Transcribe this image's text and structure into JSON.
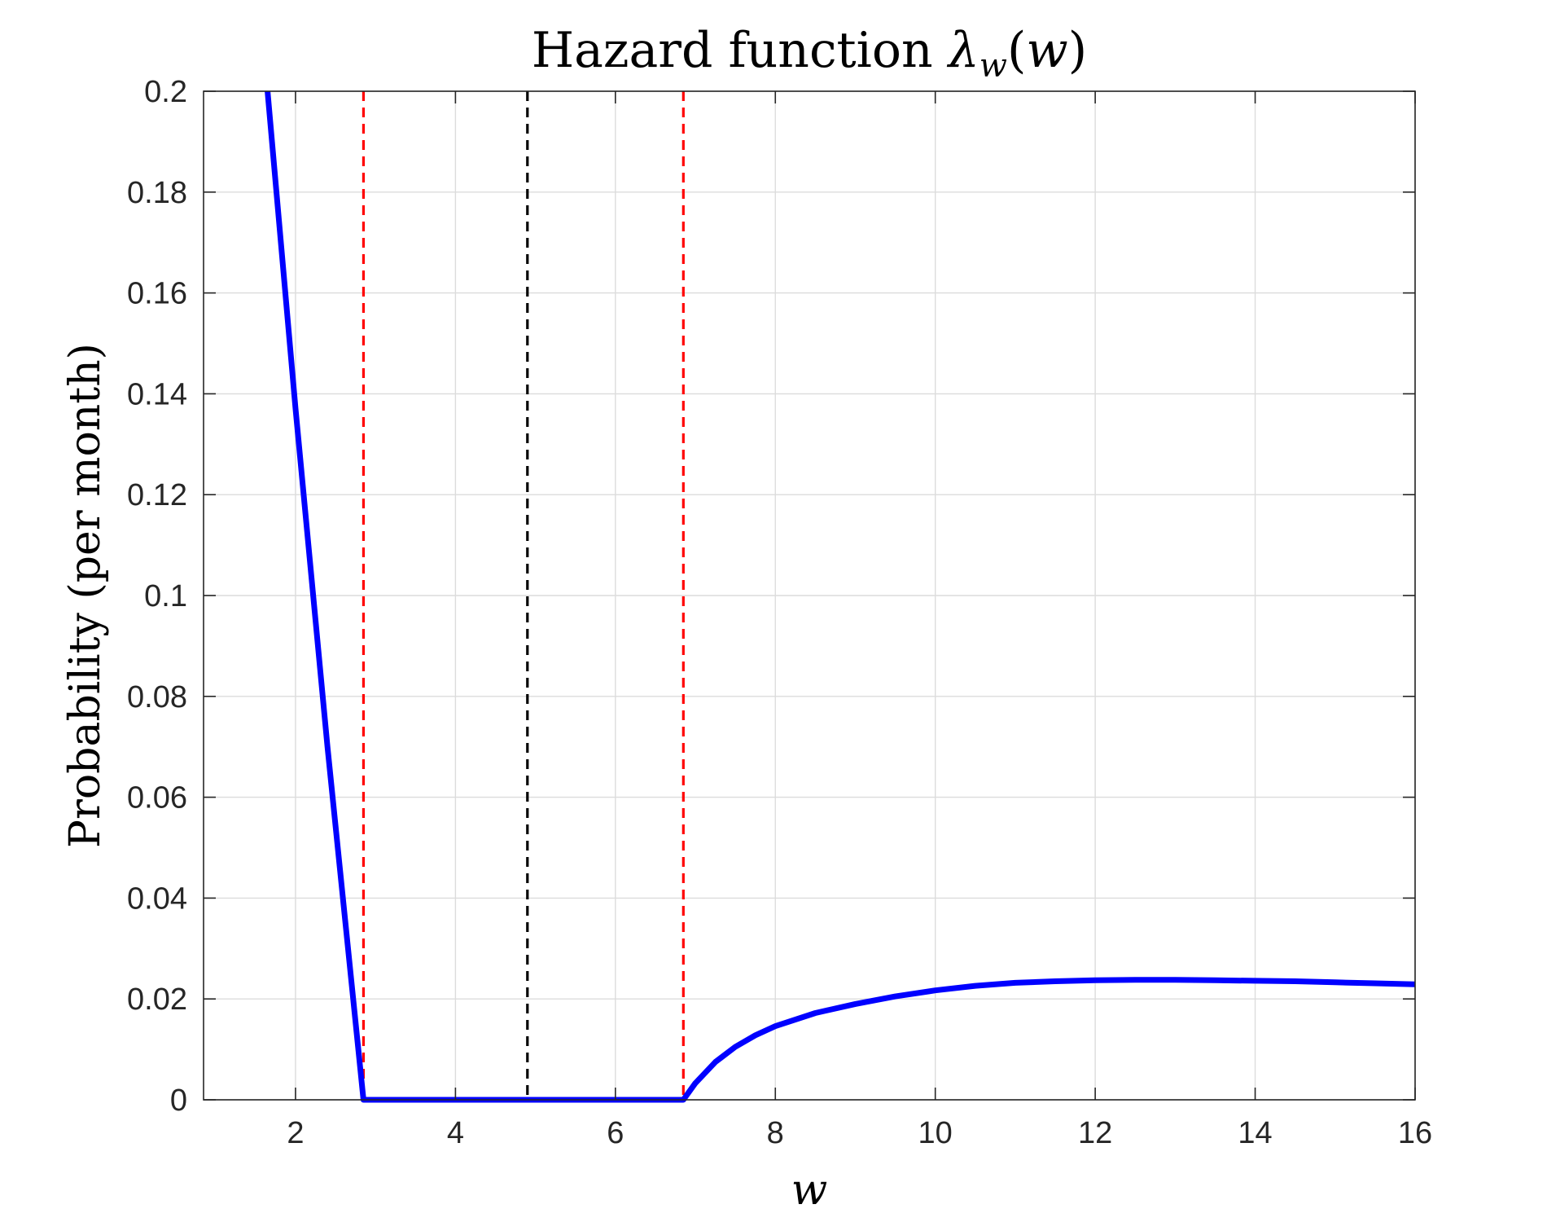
{
  "chart_data": {
    "type": "line",
    "title": {
      "prefix": "Hazard function ",
      "symbol": "λ",
      "subscript": "w",
      "argument_open": "(",
      "argument": "w",
      "argument_close": ")"
    },
    "xlabel": "w",
    "ylabel": "Probability (per month)",
    "xlim": [
      0.85,
      16
    ],
    "ylim": [
      0,
      0.2
    ],
    "x_ticks": [
      2,
      4,
      6,
      8,
      10,
      12,
      14,
      16
    ],
    "x_tick_labels": [
      "2",
      "4",
      "6",
      "8",
      "10",
      "12",
      "14",
      "16"
    ],
    "y_ticks": [
      0,
      0.02,
      0.04,
      0.06,
      0.08,
      0.1,
      0.12,
      0.14,
      0.16,
      0.18,
      0.2
    ],
    "y_tick_labels": [
      "0",
      "0.02",
      "0.04",
      "0.06",
      "0.08",
      "0.1",
      "0.12",
      "0.14",
      "0.16",
      "0.18",
      "0.2"
    ],
    "grid": true,
    "series": [
      {
        "color": "#0000ff",
        "style": "solid",
        "x": [
          1.65,
          2.0,
          2.4,
          2.85,
          3.5,
          4.5,
          5.5,
          6.5,
          6.85,
          7.0,
          7.25,
          7.5,
          7.75,
          8.0,
          8.5,
          9.0,
          9.5,
          10.0,
          10.5,
          11.0,
          11.5,
          12.0,
          12.5,
          13.0,
          13.5,
          14.0,
          14.5,
          15.0,
          15.5,
          16.0
        ],
        "y": [
          0.2,
          0.137,
          0.07,
          0.0,
          0.0,
          0.0,
          0.0,
          0.0,
          0.0,
          0.0033,
          0.0075,
          0.0105,
          0.0128,
          0.0146,
          0.0172,
          0.019,
          0.0205,
          0.0217,
          0.0226,
          0.0232,
          0.0235,
          0.0237,
          0.0238,
          0.0238,
          0.0237,
          0.0236,
          0.0235,
          0.0233,
          0.0231,
          0.0229
        ]
      }
    ],
    "vertical_lines": [
      {
        "x": 2.85,
        "color": "#ff0000",
        "style": "dashed"
      },
      {
        "x": 4.9,
        "color": "#000000",
        "style": "dashed"
      },
      {
        "x": 6.85,
        "color": "#ff0000",
        "style": "dashed"
      }
    ]
  }
}
